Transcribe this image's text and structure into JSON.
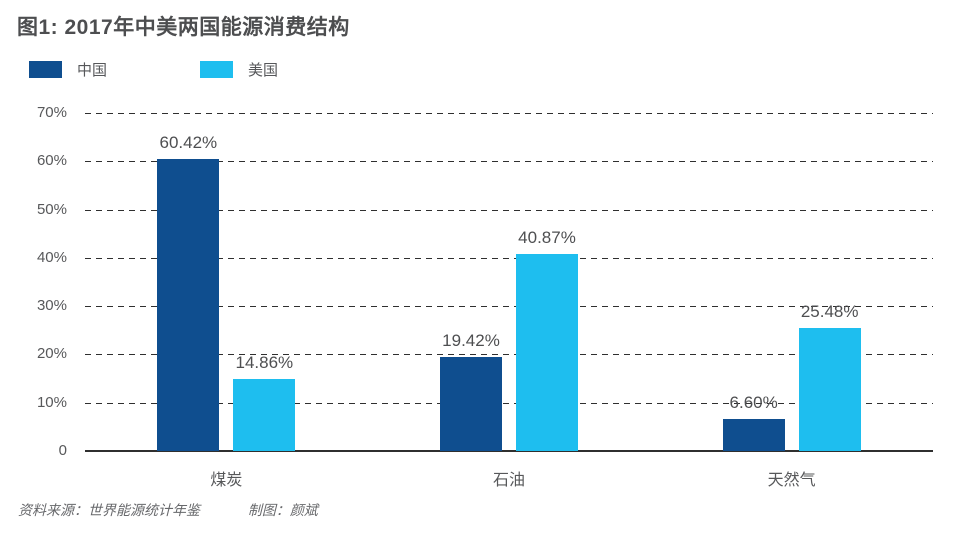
{
  "title": "图1: 2017年中美两国能源消费结构",
  "legend": [
    {
      "label": "中国",
      "color": "#0f4e8f"
    },
    {
      "label": "美国",
      "color": "#1ebeef"
    }
  ],
  "footer": {
    "source": "资料来源：世界能源统计年鉴",
    "credit": "制图：颜斌"
  },
  "chart_data": {
    "type": "bar",
    "title": "图1: 2017年中美两国能源消费结构",
    "categories": [
      "煤炭",
      "石油",
      "天然气"
    ],
    "series": [
      {
        "name": "中国",
        "color": "#0f4e8f",
        "values": [
          60.42,
          19.42,
          6.6
        ],
        "labels": [
          "60.42%",
          "19.42%",
          "6.60%"
        ]
      },
      {
        "name": "美国",
        "color": "#1ebeef",
        "values": [
          14.86,
          40.87,
          25.48
        ],
        "labels": [
          "14.86%",
          "40.87%",
          "25.48%"
        ]
      }
    ],
    "xlabel": "",
    "ylabel": "",
    "ylim": [
      0,
      70
    ],
    "ytick_step": 10,
    "ytick_labels": [
      "0",
      "10%",
      "20%",
      "30%",
      "40%",
      "50%",
      "60%",
      "70%"
    ],
    "grid": "horizontal-dashed",
    "legend_position": "top-left"
  }
}
